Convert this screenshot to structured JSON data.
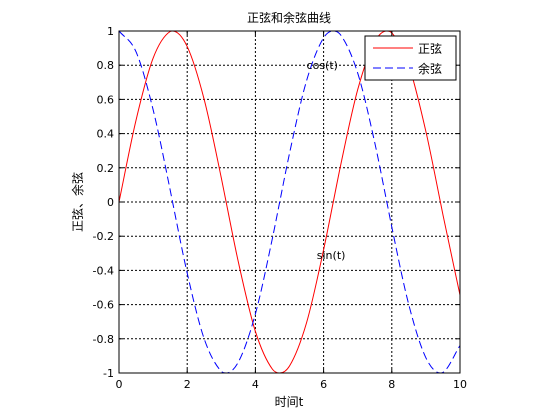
{
  "chart_data": {
    "type": "line",
    "title": "正弦和余弦曲线",
    "xlabel": "时间t",
    "ylabel": "正弦、余弦",
    "xlim": [
      0,
      10
    ],
    "ylim": [
      -1,
      1
    ],
    "x_ticks": [
      0,
      2,
      4,
      6,
      8,
      10
    ],
    "x_tick_labels": [
      "0",
      "2",
      "4",
      "6",
      "8",
      "10"
    ],
    "y_ticks": [
      1,
      0.8,
      0.6,
      0.4,
      0.2,
      0,
      -0.2,
      -0.4,
      -0.6,
      -0.8,
      -1
    ],
    "y_tick_labels": [
      "1",
      "0.8",
      "0.6",
      "0.4",
      "0.2",
      "0",
      "-0.2",
      "-0.4",
      "-0.6",
      "-0.8",
      "-1"
    ],
    "grid": true,
    "legend_position": "top-right",
    "x": [
      0,
      0.5,
      1,
      1.5,
      1.5708,
      2,
      2.5,
      3,
      3.1416,
      3.5,
      4,
      4.5,
      4.7124,
      5,
      5.5,
      6,
      6.2832,
      6.5,
      7,
      7.5,
      7.854,
      8,
      8.5,
      9,
      9.4248,
      9.5,
      10
    ],
    "series": [
      {
        "name": "正弦",
        "color": "#ff0000",
        "dash": "solid",
        "y": [
          0,
          0.479,
          0.841,
          0.997,
          1,
          0.909,
          0.598,
          0.141,
          0,
          -0.351,
          -0.757,
          -0.978,
          -1,
          -0.959,
          -0.706,
          -0.279,
          0,
          0.215,
          0.657,
          0.938,
          1,
          0.989,
          0.798,
          0.412,
          0,
          -0.075,
          -0.544
        ]
      },
      {
        "name": "余弦",
        "color": "#0000ff",
        "dash": "dashed",
        "y": [
          1,
          0.878,
          0.54,
          0.071,
          0,
          -0.416,
          -0.801,
          -0.99,
          -1,
          -0.936,
          -0.654,
          -0.211,
          0,
          0.284,
          0.709,
          0.96,
          1,
          0.977,
          0.754,
          0.347,
          0,
          -0.146,
          -0.602,
          -0.911,
          -1,
          -0.997,
          -0.839
        ]
      }
    ],
    "annotations": [
      {
        "text": "cos(t)",
        "x": 5.5,
        "y": 0.8
      },
      {
        "text": "sin(t)",
        "x": 5.8,
        "y": -0.31
      }
    ]
  }
}
